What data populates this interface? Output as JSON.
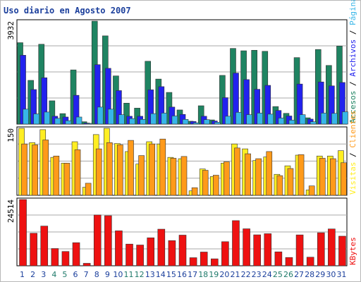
{
  "title": "Uso diario en Agosto 2007",
  "chart_data": [
    {
      "type": "bar",
      "panel": "traffic",
      "categories": [
        "1",
        "2",
        "3",
        "4",
        "5",
        "6",
        "7",
        "8",
        "9",
        "10",
        "11",
        "12",
        "13",
        "14",
        "15",
        "16",
        "17",
        "18",
        "19",
        "20",
        "21",
        "22",
        "23",
        "24",
        "25",
        "26",
        "27",
        "28",
        "29",
        "30",
        "31"
      ],
      "ymax_label": "3932",
      "ylim": [
        0,
        3932
      ],
      "series": [
        {
          "name": "Accesos",
          "color": "#1f8462",
          "values": [
            3110,
            1670,
            3050,
            890,
            400,
            2070,
            90,
            3932,
            3370,
            1840,
            800,
            610,
            2400,
            1720,
            1210,
            540,
            110,
            700,
            160,
            1860,
            2890,
            2800,
            2820,
            2780,
            670,
            410,
            2540,
            240,
            2850,
            2240,
            2980
          ]
        },
        {
          "name": "Archivos",
          "color": "#2222ee",
          "values": [
            2630,
            1320,
            1770,
            300,
            270,
            1100,
            40,
            2270,
            2130,
            1280,
            300,
            300,
            1310,
            1430,
            650,
            370,
            100,
            300,
            120,
            1010,
            1950,
            1700,
            1330,
            1480,
            520,
            310,
            1530,
            190,
            1610,
            1460,
            1590
          ]
        },
        {
          "name": "Páginas",
          "color": "#37b6e8",
          "values": [
            570,
            390,
            460,
            220,
            130,
            270,
            20,
            650,
            570,
            360,
            210,
            180,
            400,
            420,
            310,
            180,
            50,
            170,
            70,
            300,
            450,
            360,
            420,
            380,
            230,
            150,
            360,
            90,
            420,
            410,
            470
          ]
        }
      ]
    },
    {
      "type": "bar",
      "panel": "visitors",
      "categories": [
        "1",
        "2",
        "3",
        "4",
        "5",
        "6",
        "7",
        "8",
        "9",
        "10",
        "11",
        "12",
        "13",
        "14",
        "15",
        "16",
        "17",
        "18",
        "19",
        "20",
        "21",
        "22",
        "23",
        "24",
        "25",
        "26",
        "27",
        "28",
        "29",
        "30",
        "31"
      ],
      "ymax_label": "150",
      "ylim": [
        0,
        150
      ],
      "series": [
        {
          "name": "Visitas",
          "color": "#ffee22",
          "values": [
            150,
            118,
            147,
            85,
            72,
            120,
            18,
            136,
            150,
            116,
            98,
            70,
            120,
            115,
            85,
            82,
            10,
            59,
            42,
            72,
            115,
            104,
            78,
            86,
            47,
            66,
            90,
            12,
            88,
            88,
            100
          ]
        },
        {
          "name": "Clientes",
          "color": "#ff9a1a",
          "values": [
            115,
            113,
            124,
            88,
            72,
            102,
            27,
            104,
            118,
            113,
            123,
            89,
            115,
            126,
            83,
            87,
            17,
            56,
            45,
            75,
            106,
            93,
            82,
            98,
            44,
            60,
            91,
            21,
            83,
            82,
            73
          ]
        }
      ]
    },
    {
      "type": "bar",
      "panel": "bandwidth",
      "categories": [
        "1",
        "2",
        "3",
        "4",
        "5",
        "6",
        "7",
        "8",
        "9",
        "10",
        "11",
        "12",
        "13",
        "14",
        "15",
        "16",
        "17",
        "18",
        "19",
        "20",
        "21",
        "22",
        "23",
        "24",
        "25",
        "26",
        "27",
        "28",
        "29",
        "30",
        "31"
      ],
      "ymax_label": "24514",
      "ylim": [
        0,
        24514
      ],
      "series": [
        {
          "name": "KBytes",
          "color": "#ee1111",
          "values": [
            24514,
            12050,
            14700,
            6390,
            5290,
            8550,
            920,
            18790,
            18530,
            12940,
            8030,
            7690,
            10360,
            13550,
            9320,
            11350,
            3000,
            5090,
            2580,
            8920,
            16710,
            13690,
            11460,
            11880,
            5160,
            3080,
            11430,
            3190,
            12230,
            13630,
            10960
          ]
        }
      ]
    }
  ],
  "right_labels": {
    "traffic": [
      "Accesos",
      "Archivos",
      "Páginas"
    ],
    "visitors": [
      "Visitas",
      "Clientes"
    ],
    "bandwidth": [
      "KBytes"
    ],
    "separator": " / "
  },
  "weekend_days": [
    "4",
    "5",
    "11",
    "12",
    "18",
    "19",
    "25",
    "26"
  ],
  "weekend_color": "#1f7a6a",
  "day_color": "#1b3f9c",
  "grid_color": "#a8a8a8",
  "panel_bg": "#ffffff"
}
